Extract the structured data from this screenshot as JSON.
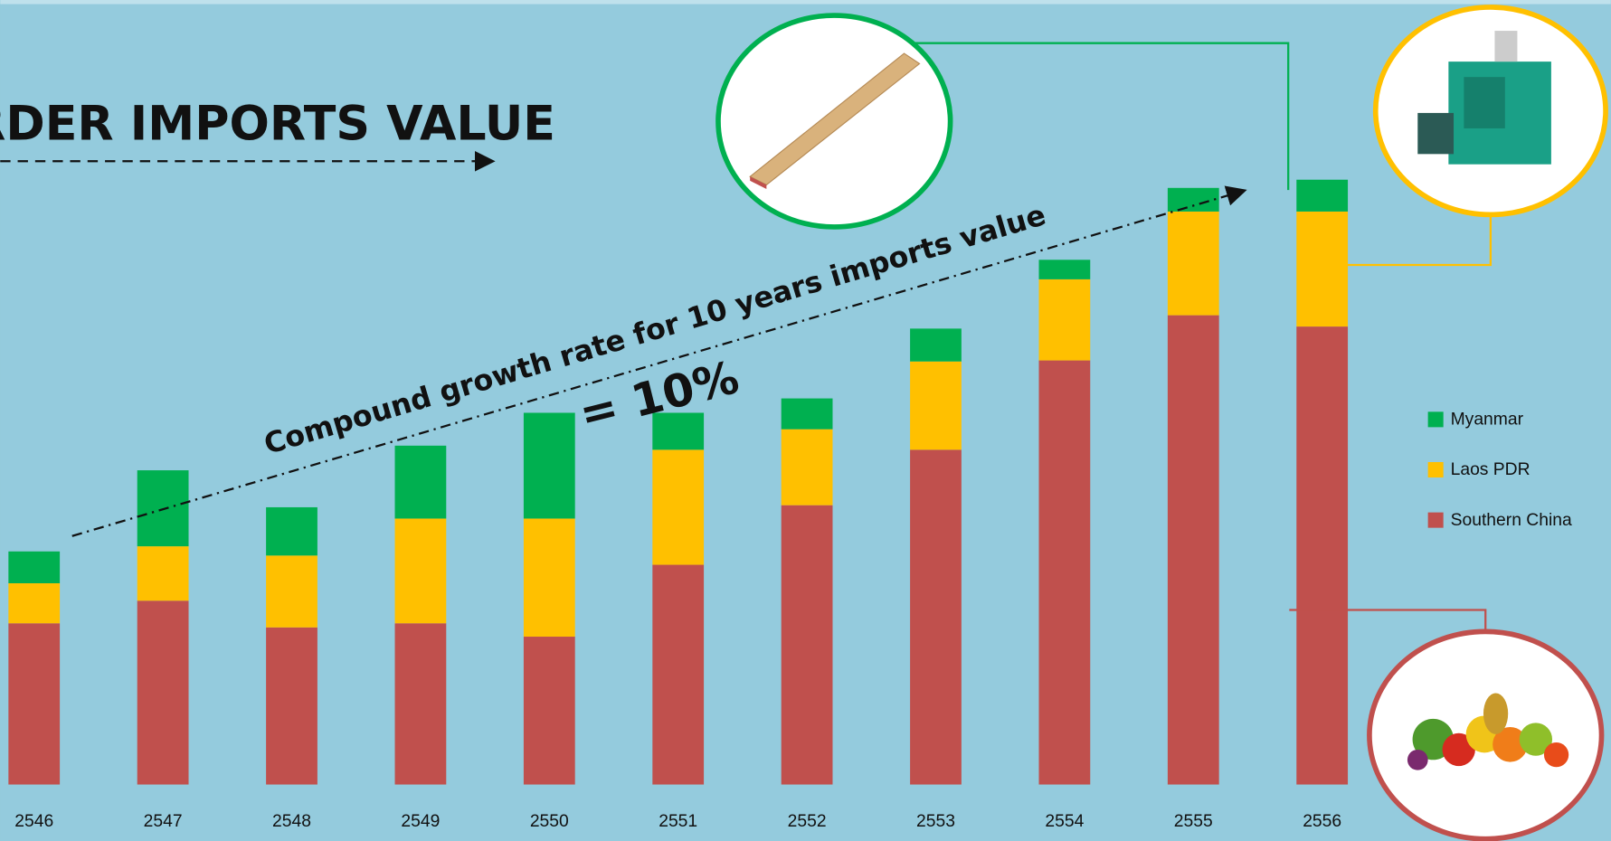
{
  "chart_data": {
    "type": "bar",
    "stacked": true,
    "title": "RDER IMPORTS VALUE",
    "annotation": "Compound growth rate for 10 years imports value",
    "annotation_value": "= 10%",
    "categories": [
      "2546",
      "2547",
      "2548",
      "2549",
      "2550",
      "2551",
      "2552",
      "2553",
      "2554",
      "2555",
      "2556"
    ],
    "series": [
      {
        "name": "Southern China",
        "color": "#c0504d",
        "values": [
          157,
          179,
          153,
          157,
          144,
          214,
          272,
          326,
          413,
          457,
          446
        ]
      },
      {
        "name": "Laos PDR",
        "color": "#ffc000",
        "values": [
          39,
          53,
          70,
          102,
          115,
          112,
          74,
          86,
          79,
          101,
          112
        ]
      },
      {
        "name": "Myanmar",
        "color": "#00b050",
        "values": [
          31,
          74,
          47,
          71,
          103,
          36,
          30,
          32,
          19,
          23,
          31
        ]
      }
    ],
    "ylim": [
      0,
      764
    ]
  }
}
